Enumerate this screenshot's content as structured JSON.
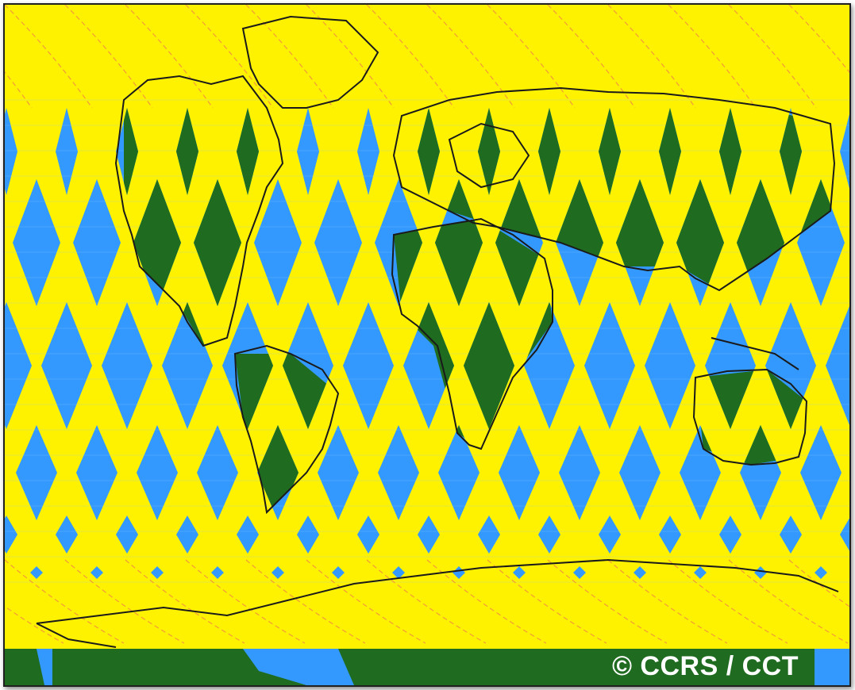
{
  "map": {
    "credit": "© CCRS / CCT",
    "colors": {
      "swath": "#fff200",
      "ocean": "#3399ff",
      "land": "#1f6b1f",
      "coastline": "#1a1a1a",
      "orbit_track": "#f39a3a",
      "grid": "#8ec8ff"
    },
    "layers": [
      "ocean-gap",
      "land-gap",
      "satellite-swath",
      "orbit-track",
      "coastline"
    ]
  }
}
